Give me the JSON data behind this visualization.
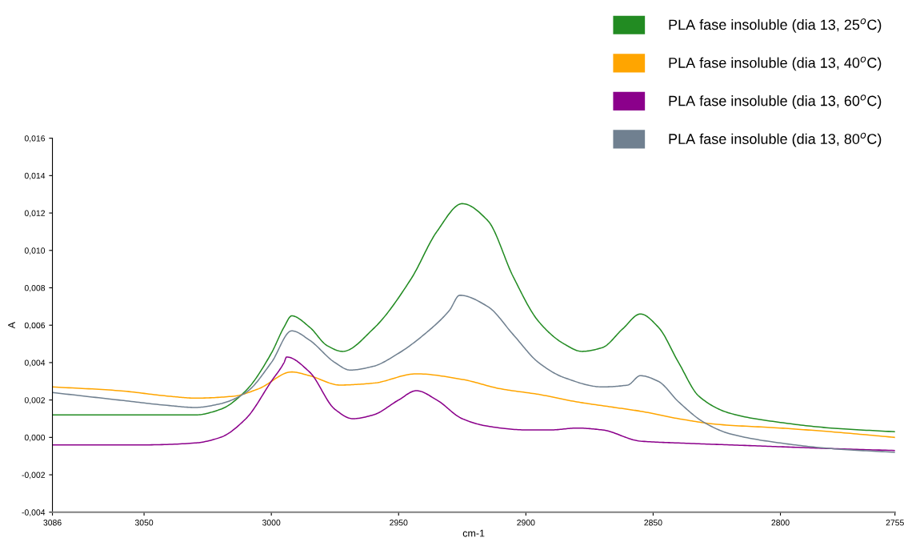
{
  "chart_data": {
    "type": "line",
    "xlabel": "cm-1",
    "ylabel": "A",
    "xlim": [
      3086,
      2755
    ],
    "xticks": [
      3086,
      3050,
      3000,
      2950,
      2900,
      2850,
      2800,
      2755
    ],
    "ylim": [
      -0.004,
      0.016
    ],
    "yticks": [
      {
        "value": -0.004,
        "label": "-0,004"
      },
      {
        "value": -0.002,
        "label": "-0,002"
      },
      {
        "value": 0,
        "label": "0,000"
      },
      {
        "value": 0.002,
        "label": "0,002"
      },
      {
        "value": 0.004,
        "label": "0,004"
      },
      {
        "value": 0.006,
        "label": "0,006"
      },
      {
        "value": 0.008,
        "label": "0,008"
      },
      {
        "value": 0.01,
        "label": "0,010"
      },
      {
        "value": 0.012,
        "label": "0,012"
      },
      {
        "value": 0.014,
        "label": "0,014"
      },
      {
        "value": 0.016,
        "label": "0,016"
      }
    ],
    "grid": false,
    "legend": "top right",
    "marker": "none",
    "line_style": "solid",
    "series": [
      {
        "name": "PLA fase insoluble (dia 13, 25$^{o}$C)",
        "color": "#228b22",
        "x": [
          3086,
          3050,
          3030,
          3020,
          3010,
          3000,
          2995,
          2992,
          2985,
          2978,
          2972,
          2960,
          2945,
          2935,
          2925,
          2915,
          2905,
          2895,
          2885,
          2878,
          2870,
          2862,
          2855,
          2848,
          2840,
          2832,
          2820,
          2800,
          2780,
          2755
        ],
        "values": [
          0.0012,
          0.0012,
          0.0012,
          0.0015,
          0.0025,
          0.0045,
          0.0059,
          0.0065,
          0.0059,
          0.0049,
          0.0046,
          0.0058,
          0.0085,
          0.011,
          0.0125,
          0.0116,
          0.0086,
          0.0062,
          0.005,
          0.0046,
          0.0048,
          0.0058,
          0.0066,
          0.0059,
          0.004,
          0.0022,
          0.0013,
          0.0008,
          0.0005,
          0.0003
        ]
      },
      {
        "name": "PLA fase insoluble (dia 13, 40$^{o}$C)",
        "color": "#ffa500",
        "x": [
          3086,
          3060,
          3040,
          3030,
          3015,
          3005,
          2992,
          2985,
          2973,
          2960,
          2943,
          2925,
          2910,
          2895,
          2880,
          2865,
          2855,
          2840,
          2825,
          2800,
          2780,
          2755
        ],
        "values": [
          0.0027,
          0.0025,
          0.0022,
          0.0021,
          0.0022,
          0.0026,
          0.0035,
          0.0033,
          0.0028,
          0.0029,
          0.0034,
          0.0031,
          0.0026,
          0.0023,
          0.0019,
          0.0016,
          0.0014,
          0.001,
          0.0007,
          0.0005,
          0.0003,
          0.0
        ]
      },
      {
        "name": "PLA fase insoluble (dia 13, 60$^{o}$C)",
        "color": "#8b008b",
        "x": [
          3086,
          3050,
          3030,
          3020,
          3010,
          3000,
          2995,
          2994,
          2985,
          2975,
          2968,
          2960,
          2950,
          2943,
          2935,
          2925,
          2915,
          2900,
          2890,
          2880,
          2870,
          2855,
          2840,
          2820,
          2800,
          2780,
          2755
        ],
        "values": [
          -0.0004,
          -0.0004,
          -0.0003,
          0.0,
          0.001,
          0.003,
          0.004,
          0.0043,
          0.0035,
          0.0015,
          0.001,
          0.0012,
          0.002,
          0.0025,
          0.002,
          0.001,
          0.0006,
          0.0004,
          0.0004,
          0.0005,
          0.0004,
          -0.0002,
          -0.0003,
          -0.0004,
          -0.0005,
          -0.0006,
          -0.0007
        ]
      },
      {
        "name": "PLA fase insoluble (dia 13, 80$^{o}$C)",
        "color": "#708090",
        "x": [
          3086,
          3060,
          3040,
          3030,
          3020,
          3010,
          3000,
          2992,
          2985,
          2975,
          2969,
          2960,
          2950,
          2940,
          2930,
          2926,
          2915,
          2905,
          2895,
          2885,
          2870,
          2860,
          2855,
          2848,
          2840,
          2830,
          2820,
          2800,
          2780,
          2755
        ],
        "values": [
          0.0024,
          0.002,
          0.0017,
          0.0016,
          0.0018,
          0.0024,
          0.004,
          0.0057,
          0.0052,
          0.004,
          0.0036,
          0.0038,
          0.0045,
          0.0055,
          0.0068,
          0.0076,
          0.007,
          0.0055,
          0.004,
          0.0032,
          0.0027,
          0.0028,
          0.0033,
          0.003,
          0.0019,
          0.0008,
          0.0002,
          -0.0003,
          -0.0006,
          -0.0008
        ]
      }
    ]
  }
}
